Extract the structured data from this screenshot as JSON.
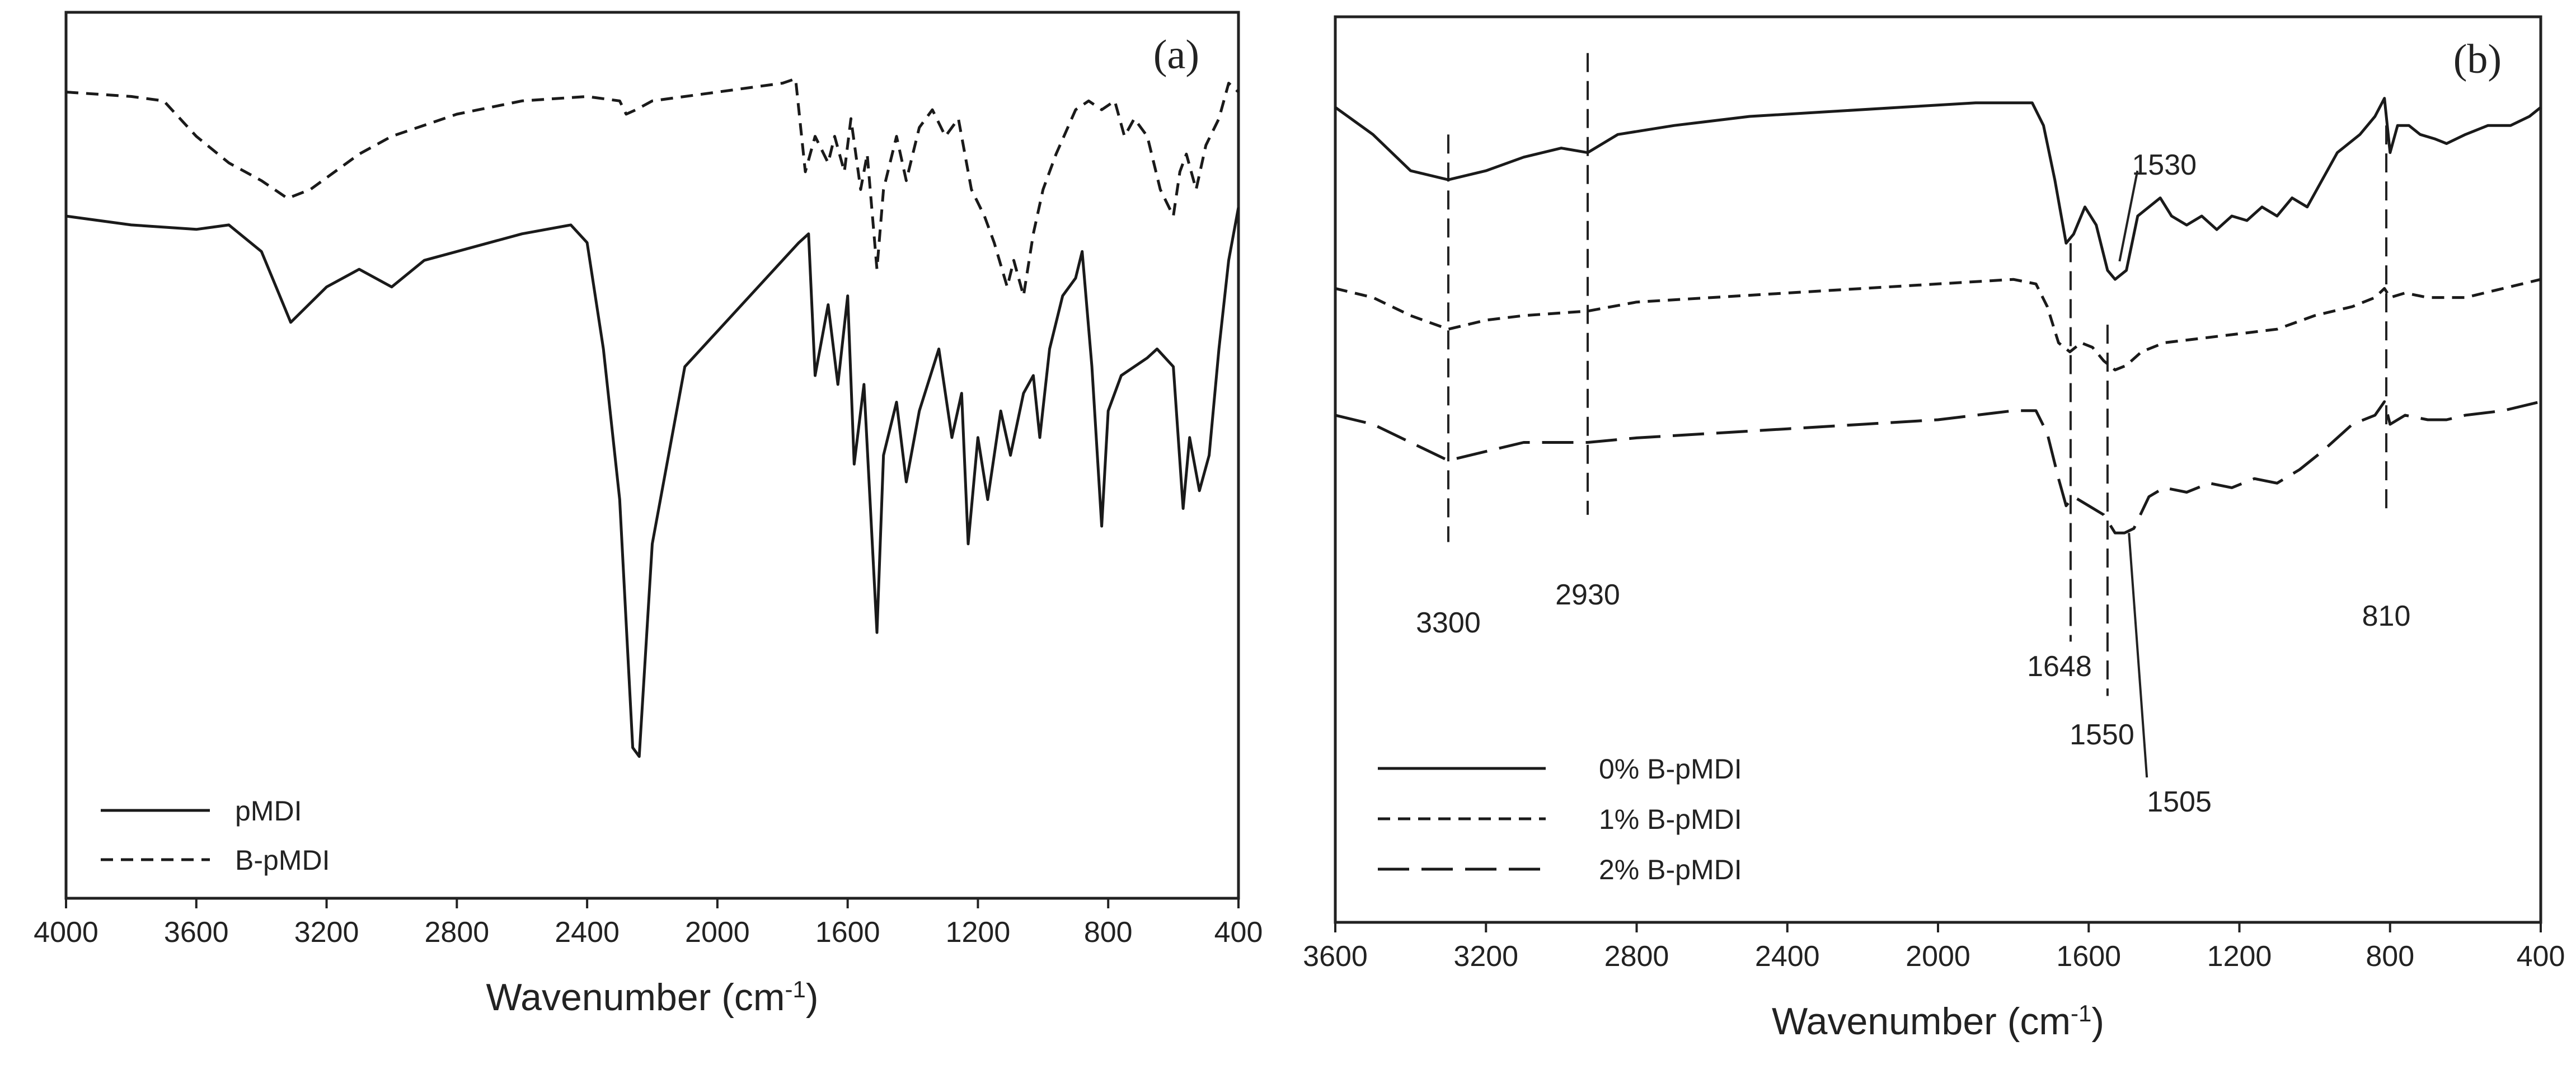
{
  "chart_data": [
    {
      "type": "line",
      "panel_label": "(a)",
      "xlabel": "Wavenumber (cm",
      "xlabel_sup": "-1",
      "xlabel_close": ")",
      "ylabel": "",
      "x_reversed": true,
      "xlim": [
        4000,
        400
      ],
      "ylim": [
        0,
        1
      ],
      "y_ticks_shown": false,
      "x_ticks": [
        "4000",
        "3600",
        "3200",
        "2800",
        "2400",
        "2000",
        "1600",
        "1200",
        "800",
        "400"
      ],
      "legend_position": "bottom-left",
      "series": [
        {
          "name": "pMDI",
          "style": "solid",
          "points": [
            [
              4000,
              0.77
            ],
            [
              3800,
              0.76
            ],
            [
              3600,
              0.755
            ],
            [
              3500,
              0.76
            ],
            [
              3400,
              0.73
            ],
            [
              3310,
              0.65
            ],
            [
              3200,
              0.69
            ],
            [
              3100,
              0.71
            ],
            [
              3000,
              0.69
            ],
            [
              2900,
              0.72
            ],
            [
              2800,
              0.73
            ],
            [
              2600,
              0.75
            ],
            [
              2450,
              0.76
            ],
            [
              2400,
              0.74
            ],
            [
              2350,
              0.62
            ],
            [
              2300,
              0.45
            ],
            [
              2260,
              0.17
            ],
            [
              2240,
              0.16
            ],
            [
              2200,
              0.4
            ],
            [
              2100,
              0.6
            ],
            [
              2000,
              0.64
            ],
            [
              1900,
              0.68
            ],
            [
              1800,
              0.72
            ],
            [
              1750,
              0.74
            ],
            [
              1720,
              0.75
            ],
            [
              1700,
              0.59
            ],
            [
              1660,
              0.67
            ],
            [
              1630,
              0.58
            ],
            [
              1600,
              0.68
            ],
            [
              1580,
              0.49
            ],
            [
              1550,
              0.58
            ],
            [
              1510,
              0.3
            ],
            [
              1490,
              0.5
            ],
            [
              1450,
              0.56
            ],
            [
              1420,
              0.47
            ],
            [
              1380,
              0.55
            ],
            [
              1320,
              0.62
            ],
            [
              1280,
              0.52
            ],
            [
              1250,
              0.57
            ],
            [
              1230,
              0.4
            ],
            [
              1200,
              0.52
            ],
            [
              1170,
              0.45
            ],
            [
              1130,
              0.55
            ],
            [
              1100,
              0.5
            ],
            [
              1060,
              0.57
            ],
            [
              1030,
              0.59
            ],
            [
              1010,
              0.52
            ],
            [
              980,
              0.62
            ],
            [
              940,
              0.68
            ],
            [
              900,
              0.7
            ],
            [
              880,
              0.73
            ],
            [
              850,
              0.6
            ],
            [
              820,
              0.42
            ],
            [
              800,
              0.55
            ],
            [
              760,
              0.59
            ],
            [
              720,
              0.6
            ],
            [
              680,
              0.61
            ],
            [
              650,
              0.62
            ],
            [
              600,
              0.6
            ],
            [
              570,
              0.44
            ],
            [
              550,
              0.52
            ],
            [
              520,
              0.46
            ],
            [
              490,
              0.5
            ],
            [
              460,
              0.62
            ],
            [
              430,
              0.72
            ],
            [
              400,
              0.78
            ]
          ]
        },
        {
          "name": "B-pMDI",
          "style": "dashed",
          "points": [
            [
              4000,
              0.91
            ],
            [
              3800,
              0.905
            ],
            [
              3700,
              0.9
            ],
            [
              3600,
              0.86
            ],
            [
              3500,
              0.83
            ],
            [
              3400,
              0.81
            ],
            [
              3320,
              0.79
            ],
            [
              3250,
              0.8
            ],
            [
              3100,
              0.84
            ],
            [
              3000,
              0.86
            ],
            [
              2800,
              0.885
            ],
            [
              2600,
              0.9
            ],
            [
              2400,
              0.905
            ],
            [
              2300,
              0.9
            ],
            [
              2280,
              0.885
            ],
            [
              2250,
              0.89
            ],
            [
              2200,
              0.9
            ],
            [
              2000,
              0.91
            ],
            [
              1800,
              0.92
            ],
            [
              1760,
              0.925
            ],
            [
              1730,
              0.82
            ],
            [
              1700,
              0.86
            ],
            [
              1660,
              0.83
            ],
            [
              1640,
              0.86
            ],
            [
              1610,
              0.82
            ],
            [
              1590,
              0.88
            ],
            [
              1560,
              0.8
            ],
            [
              1540,
              0.84
            ],
            [
              1510,
              0.71
            ],
            [
              1490,
              0.8
            ],
            [
              1450,
              0.86
            ],
            [
              1420,
              0.81
            ],
            [
              1380,
              0.87
            ],
            [
              1340,
              0.89
            ],
            [
              1300,
              0.86
            ],
            [
              1260,
              0.88
            ],
            [
              1220,
              0.8
            ],
            [
              1180,
              0.77
            ],
            [
              1150,
              0.74
            ],
            [
              1110,
              0.69
            ],
            [
              1090,
              0.72
            ],
            [
              1060,
              0.68
            ],
            [
              1030,
              0.75
            ],
            [
              1000,
              0.8
            ],
            [
              960,
              0.84
            ],
            [
              900,
              0.89
            ],
            [
              860,
              0.9
            ],
            [
              820,
              0.89
            ],
            [
              780,
              0.9
            ],
            [
              750,
              0.86
            ],
            [
              720,
              0.88
            ],
            [
              680,
              0.86
            ],
            [
              640,
              0.8
            ],
            [
              600,
              0.77
            ],
            [
              580,
              0.82
            ],
            [
              560,
              0.84
            ],
            [
              530,
              0.8
            ],
            [
              500,
              0.85
            ],
            [
              460,
              0.88
            ],
            [
              430,
              0.92
            ],
            [
              400,
              0.91
            ]
          ]
        }
      ]
    },
    {
      "type": "line",
      "panel_label": "(b)",
      "xlabel": "Wavenumber (cm",
      "xlabel_sup": "-1",
      "xlabel_close": ")",
      "ylabel": "",
      "x_reversed": true,
      "xlim": [
        3600,
        400
      ],
      "ylim": [
        0,
        1
      ],
      "y_ticks_shown": false,
      "x_ticks": [
        "3600",
        "3200",
        "2800",
        "2400",
        "2000",
        "1600",
        "1200",
        "800",
        "400"
      ],
      "legend_position": "bottom-left",
      "series": [
        {
          "name": "0% B-pMDI",
          "style": "solid",
          "points": [
            [
              3600,
              0.9
            ],
            [
              3500,
              0.87
            ],
            [
              3400,
              0.83
            ],
            [
              3300,
              0.82
            ],
            [
              3200,
              0.83
            ],
            [
              3100,
              0.845
            ],
            [
              3000,
              0.855
            ],
            [
              2930,
              0.85
            ],
            [
              2850,
              0.87
            ],
            [
              2700,
              0.88
            ],
            [
              2500,
              0.89
            ],
            [
              2300,
              0.895
            ],
            [
              2100,
              0.9
            ],
            [
              1900,
              0.905
            ],
            [
              1750,
              0.905
            ],
            [
              1720,
              0.88
            ],
            [
              1690,
              0.82
            ],
            [
              1660,
              0.75
            ],
            [
              1640,
              0.76
            ],
            [
              1610,
              0.79
            ],
            [
              1580,
              0.77
            ],
            [
              1550,
              0.72
            ],
            [
              1530,
              0.71
            ],
            [
              1500,
              0.72
            ],
            [
              1470,
              0.78
            ],
            [
              1440,
              0.79
            ],
            [
              1410,
              0.8
            ],
            [
              1380,
              0.78
            ],
            [
              1340,
              0.77
            ],
            [
              1300,
              0.78
            ],
            [
              1260,
              0.765
            ],
            [
              1220,
              0.78
            ],
            [
              1180,
              0.775
            ],
            [
              1140,
              0.79
            ],
            [
              1100,
              0.78
            ],
            [
              1060,
              0.8
            ],
            [
              1020,
              0.79
            ],
            [
              980,
              0.82
            ],
            [
              940,
              0.85
            ],
            [
              880,
              0.87
            ],
            [
              840,
              0.89
            ],
            [
              815,
              0.91
            ],
            [
              800,
              0.85
            ],
            [
              780,
              0.88
            ],
            [
              750,
              0.88
            ],
            [
              720,
              0.87
            ],
            [
              680,
              0.865
            ],
            [
              650,
              0.86
            ],
            [
              600,
              0.87
            ],
            [
              540,
              0.88
            ],
            [
              480,
              0.88
            ],
            [
              430,
              0.89
            ],
            [
              400,
              0.9
            ]
          ]
        },
        {
          "name": "1% B-pMDI",
          "style": "dashed",
          "points": [
            [
              3600,
              0.7
            ],
            [
              3500,
              0.69
            ],
            [
              3400,
              0.67
            ],
            [
              3300,
              0.655
            ],
            [
              3200,
              0.665
            ],
            [
              3100,
              0.67
            ],
            [
              2930,
              0.675
            ],
            [
              2800,
              0.685
            ],
            [
              2600,
              0.69
            ],
            [
              2400,
              0.695
            ],
            [
              2200,
              0.7
            ],
            [
              2000,
              0.705
            ],
            [
              1800,
              0.71
            ],
            [
              1740,
              0.705
            ],
            [
              1710,
              0.68
            ],
            [
              1680,
              0.64
            ],
            [
              1650,
              0.63
            ],
            [
              1620,
              0.64
            ],
            [
              1590,
              0.635
            ],
            [
              1560,
              0.62
            ],
            [
              1530,
              0.61
            ],
            [
              1500,
              0.615
            ],
            [
              1460,
              0.63
            ],
            [
              1400,
              0.64
            ],
            [
              1300,
              0.645
            ],
            [
              1200,
              0.65
            ],
            [
              1100,
              0.655
            ],
            [
              1000,
              0.67
            ],
            [
              900,
              0.68
            ],
            [
              840,
              0.69
            ],
            [
              815,
              0.7
            ],
            [
              800,
              0.69
            ],
            [
              760,
              0.695
            ],
            [
              700,
              0.69
            ],
            [
              650,
              0.69
            ],
            [
              600,
              0.69
            ],
            [
              500,
              0.7
            ],
            [
              400,
              0.71
            ]
          ]
        },
        {
          "name": "2% B-pMDI",
          "style": "long-dashed",
          "points": [
            [
              3600,
              0.56
            ],
            [
              3500,
              0.55
            ],
            [
              3400,
              0.53
            ],
            [
              3300,
              0.51
            ],
            [
              3200,
              0.52
            ],
            [
              3100,
              0.53
            ],
            [
              2930,
              0.53
            ],
            [
              2800,
              0.535
            ],
            [
              2600,
              0.54
            ],
            [
              2400,
              0.545
            ],
            [
              2200,
              0.55
            ],
            [
              2000,
              0.555
            ],
            [
              1800,
              0.565
            ],
            [
              1740,
              0.565
            ],
            [
              1710,
              0.54
            ],
            [
              1680,
              0.49
            ],
            [
              1660,
              0.46
            ],
            [
              1640,
              0.47
            ],
            [
              1600,
              0.46
            ],
            [
              1560,
              0.45
            ],
            [
              1530,
              0.43
            ],
            [
              1505,
              0.43
            ],
            [
              1480,
              0.435
            ],
            [
              1440,
              0.47
            ],
            [
              1400,
              0.48
            ],
            [
              1340,
              0.475
            ],
            [
              1280,
              0.485
            ],
            [
              1220,
              0.48
            ],
            [
              1160,
              0.49
            ],
            [
              1100,
              0.485
            ],
            [
              1040,
              0.5
            ],
            [
              980,
              0.52
            ],
            [
              900,
              0.55
            ],
            [
              840,
              0.56
            ],
            [
              815,
              0.575
            ],
            [
              800,
              0.55
            ],
            [
              760,
              0.56
            ],
            [
              700,
              0.555
            ],
            [
              650,
              0.555
            ],
            [
              600,
              0.56
            ],
            [
              500,
              0.565
            ],
            [
              400,
              0.575
            ]
          ]
        }
      ],
      "reference_lines": [
        3300,
        2930,
        1648,
        1550,
        810
      ],
      "annotations": [
        {
          "text": "3300",
          "x": 3300
        },
        {
          "text": "2930",
          "x": 2930
        },
        {
          "text": "1648",
          "x": 1648
        },
        {
          "text": "1530",
          "x": 1530
        },
        {
          "text": "1550",
          "x": 1550
        },
        {
          "text": "1505",
          "x": 1505
        },
        {
          "text": "810",
          "x": 810
        }
      ]
    }
  ]
}
